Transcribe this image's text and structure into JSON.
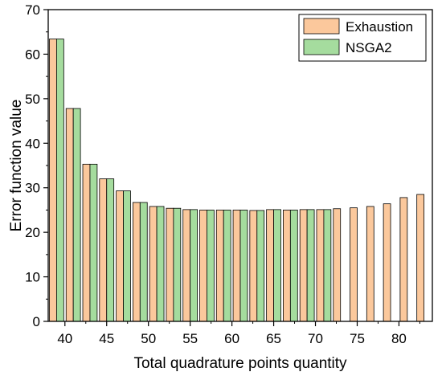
{
  "chart_data": {
    "type": "bar",
    "title": "",
    "xlabel": "Total quadrature points quantity",
    "ylabel": "Error function value",
    "xlim": [
      38,
      84
    ],
    "ylim": [
      0,
      70
    ],
    "x_ticks": [
      40,
      45,
      50,
      55,
      60,
      65,
      70,
      75,
      80
    ],
    "y_ticks": [
      0,
      10,
      20,
      30,
      40,
      50,
      60,
      70
    ],
    "grid": false,
    "legend_position": "top-right",
    "series": [
      {
        "name": "Exhaustion",
        "color": "#fbc89c",
        "x": [
          39,
          41,
          43,
          45,
          47,
          49,
          51,
          53,
          55,
          57,
          59,
          61,
          63,
          65,
          67,
          69,
          71,
          73,
          75,
          77,
          79,
          81,
          83
        ],
        "values": [
          63.4,
          47.8,
          35.3,
          32.0,
          29.3,
          26.7,
          25.8,
          25.4,
          25.1,
          25.0,
          25.0,
          25.0,
          24.9,
          25.1,
          25.0,
          25.1,
          25.1,
          25.3,
          25.5,
          25.8,
          26.4,
          27.8,
          28.5
        ]
      },
      {
        "name": "NSGA2",
        "color": "#a5dc9e",
        "x": [
          39,
          41,
          43,
          45,
          47,
          49,
          51,
          53,
          55,
          57,
          59,
          61,
          63,
          65,
          67,
          69,
          71
        ],
        "values": [
          63.4,
          47.8,
          35.3,
          32.0,
          29.3,
          26.7,
          25.8,
          25.4,
          25.1,
          25.0,
          25.0,
          25.0,
          24.9,
          25.1,
          25.0,
          25.1,
          25.1
        ]
      }
    ]
  }
}
